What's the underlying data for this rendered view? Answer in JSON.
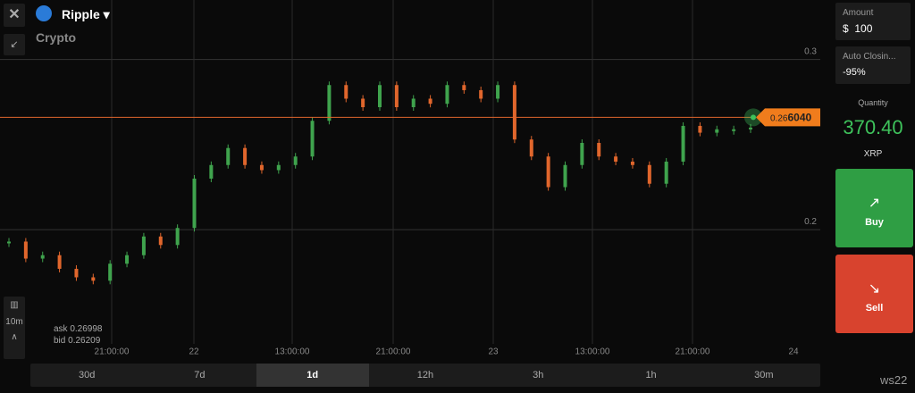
{
  "header": {
    "asset": "Ripple",
    "category": "Crypto"
  },
  "toolbar": {
    "interval": "10m"
  },
  "quote": {
    "ask_label": "ask",
    "ask": "0.26998",
    "bid_label": "bid",
    "bid": "0.26209"
  },
  "chart_data": {
    "type": "candlestick",
    "values": [
      0.193,
      0.183,
      0.185,
      0.177,
      0.172,
      0.17,
      0.18,
      0.185,
      0.196,
      0.191,
      0.201,
      0.23,
      0.238,
      0.248,
      0.238,
      0.235,
      0.238,
      0.243,
      0.264,
      0.285,
      0.277,
      0.272,
      0.285,
      0.272,
      0.277,
      0.274,
      0.285,
      0.282,
      0.277,
      0.285,
      0.253,
      0.243,
      0.225,
      0.238,
      0.251,
      0.243,
      0.24,
      0.238,
      0.227,
      0.24,
      0.261,
      0.257,
      0.259,
      0.259,
      0.26
    ],
    "up_color": "#3fa34d",
    "down_color": "#e0662c",
    "ylim": [
      0.125,
      0.335
    ],
    "yticks": [
      0.2,
      0.3
    ],
    "xtick_labels": [
      "21:00:00",
      "22",
      "13:00:00",
      "21:00:00",
      "23",
      "13:00:00",
      "21:00:00",
      "24"
    ],
    "current_price": {
      "value": 0.26604,
      "label_prefix": "0.26",
      "label_suffix": "6040"
    }
  },
  "timeframes": {
    "options": [
      "30d",
      "7d",
      "1d",
      "12h",
      "3h",
      "1h",
      "30m"
    ],
    "active": "1d"
  },
  "panel": {
    "amount_label": "Amount",
    "currency": "$",
    "amount": "100",
    "auto_close_label": "Auto Closin...",
    "auto_close": "-95%",
    "quantity_label": "Quantity",
    "quantity": "370.40",
    "unit": "XRP",
    "buy": "Buy",
    "sell": "Sell"
  },
  "footer": {
    "tag": "ws22"
  }
}
